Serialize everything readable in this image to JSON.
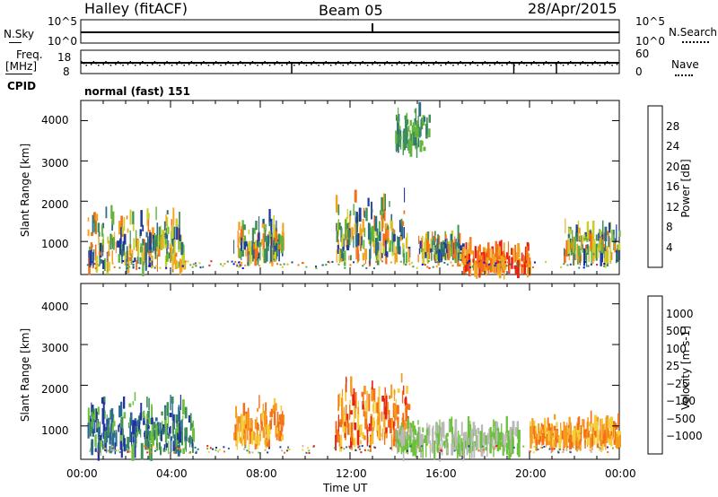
{
  "header": {
    "station": "Halley (fitACF)",
    "beam": "Beam 05",
    "date": "28/Apr/2015"
  },
  "strip1": {
    "left_label": "N.Sky",
    "right_label": "N.Search",
    "ticks_left": [
      "10^5",
      "10^0"
    ],
    "ticks_right": [
      "10^5",
      "10^0"
    ]
  },
  "strip2": {
    "left_label": "Freq.",
    "left_unit": "[MHz]",
    "right_label": "Nave",
    "ticks_left": [
      "18",
      "8"
    ],
    "ticks_right": [
      "60",
      "0"
    ]
  },
  "cpid": {
    "label": "CPID",
    "mode": "normal (fast) 151"
  },
  "power_panel": {
    "ylabel": "Slant Range [km]",
    "yticks": [
      "4000",
      "3000",
      "2000",
      "1000"
    ],
    "colorbar_label": "Power [dB]",
    "colorbar_ticks": [
      "28",
      "24",
      "20",
      "16",
      "12",
      "8",
      "4"
    ],
    "colors": [
      "#0000ff",
      "#1f3a9a",
      "#2f6e7f",
      "#3f8f57",
      "#62b53c",
      "#c9cf2a",
      "#f2a41e",
      "#f46f17",
      "#e82014"
    ]
  },
  "velocity_panel": {
    "ylabel": "Slant Range [km]",
    "yticks": [
      "4000",
      "3000",
      "2000",
      "1000"
    ],
    "colorbar_label": "Velocity [m s-1]",
    "colorbar_ticks": [
      "1000",
      "500",
      "100",
      "25",
      "−25",
      "−100",
      "−500",
      "−1000"
    ],
    "colors": [
      "#1f34a0",
      "#2a6a92",
      "#3f8f57",
      "#6cc13b",
      "#b9b9b9",
      "#f5ce3b",
      "#f49a1c",
      "#f46f17",
      "#e82014"
    ]
  },
  "x_axis": {
    "label": "Time UT",
    "ticks": [
      "00:00",
      "04:00",
      "08:00",
      "12:00",
      "16:00",
      "20:00",
      "00:00"
    ]
  },
  "chart_data": {
    "type": "heatmap",
    "title": "Halley (fitACF) Beam 05 28/Apr/2015",
    "xlabel": "Time UT",
    "x_range_hours": [
      0,
      24
    ],
    "ylabel": "Slant Range [km]",
    "ylim": [
      180,
      4500
    ],
    "panels": [
      {
        "name": "Power [dB]",
        "clim": [
          0,
          30
        ],
        "regions": [
          {
            "t_start": 0.3,
            "t_end": 4.6,
            "range_min": 400,
            "range_max": 1900,
            "level": "mixed 8-24"
          },
          {
            "t_start": 6.8,
            "t_end": 9.0,
            "range_min": 600,
            "range_max": 1700,
            "level": "mixed 12-28"
          },
          {
            "t_start": 11.3,
            "t_end": 14.6,
            "range_min": 600,
            "range_max": 2300,
            "level": "mixed 12-28"
          },
          {
            "t_start": 15.0,
            "t_end": 17.0,
            "range_min": 600,
            "range_max": 1300,
            "level": "mixed 12-24"
          },
          {
            "t_start": 17.0,
            "t_end": 20.0,
            "range_min": 300,
            "range_max": 1000,
            "level": "20-28"
          },
          {
            "t_start": 21.5,
            "t_end": 24.0,
            "range_min": 600,
            "range_max": 1500,
            "level": "mixed 8-28"
          },
          {
            "t_start": 14.0,
            "t_end": 15.5,
            "range_min": 3300,
            "range_max": 4500,
            "level": "8-16"
          }
        ]
      },
      {
        "name": "Velocity [m s-1]",
        "clim": [
          -1000,
          1000
        ],
        "regions": [
          {
            "t_start": 0.3,
            "t_end": 5.0,
            "range_min": 400,
            "range_max": 1900,
            "level": "100 to 1000"
          },
          {
            "t_start": 6.8,
            "t_end": 9.0,
            "range_min": 600,
            "range_max": 1700,
            "level": "-500 to -100"
          },
          {
            "t_start": 11.3,
            "t_end": 14.6,
            "range_min": 600,
            "range_max": 2300,
            "level": "-1000 to -100"
          },
          {
            "t_start": 14.0,
            "t_end": 19.5,
            "range_min": 400,
            "range_max": 1200,
            "level": "25 to 100"
          },
          {
            "t_start": 20.0,
            "t_end": 24.0,
            "range_min": 600,
            "range_max": 1300,
            "level": "-500 to -100"
          }
        ]
      }
    ]
  }
}
